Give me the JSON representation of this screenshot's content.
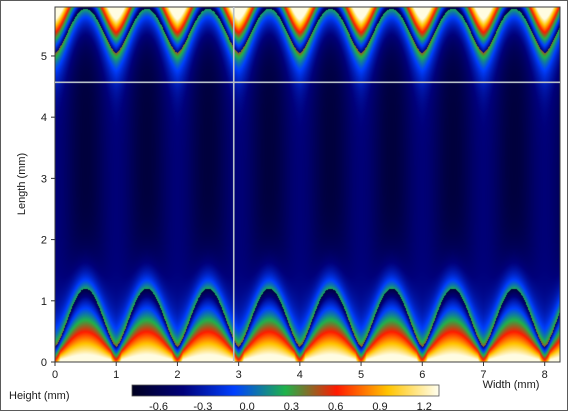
{
  "chart_data": {
    "type": "heatmap",
    "title": "",
    "xlabel": "Width  (mm)",
    "ylabel": "Length  (mm)",
    "xlim": [
      0,
      8.25
    ],
    "ylim": [
      0,
      5.8
    ],
    "x_ticks": [
      0,
      1,
      2,
      3,
      4,
      5,
      6,
      7,
      8
    ],
    "y_ticks": [
      0,
      1,
      2,
      3,
      4,
      5
    ],
    "grid": false,
    "surface": {
      "description_of_values": "periodic ridged surface height",
      "ridge_period_mm": 1.0,
      "height_min": -0.75,
      "height_max": 1.3
    },
    "crosshair": {
      "x": 2.92,
      "y": 4.57
    },
    "colorbar": {
      "label": "Height  (mm)",
      "ticks": [
        -0.6,
        -0.3,
        0.0,
        0.3,
        0.6,
        0.9,
        1.2
      ],
      "tick_labels": [
        "-0.6",
        "-0.3",
        "0.0",
        "0.3",
        "0.6",
        "0.9",
        "1.2"
      ],
      "range": [
        -0.78,
        1.3
      ],
      "colors": [
        "#000020",
        "#00007a",
        "#0040ff",
        "#1fb24a",
        "#ff1a00",
        "#ffc400",
        "#fffff0"
      ]
    }
  }
}
